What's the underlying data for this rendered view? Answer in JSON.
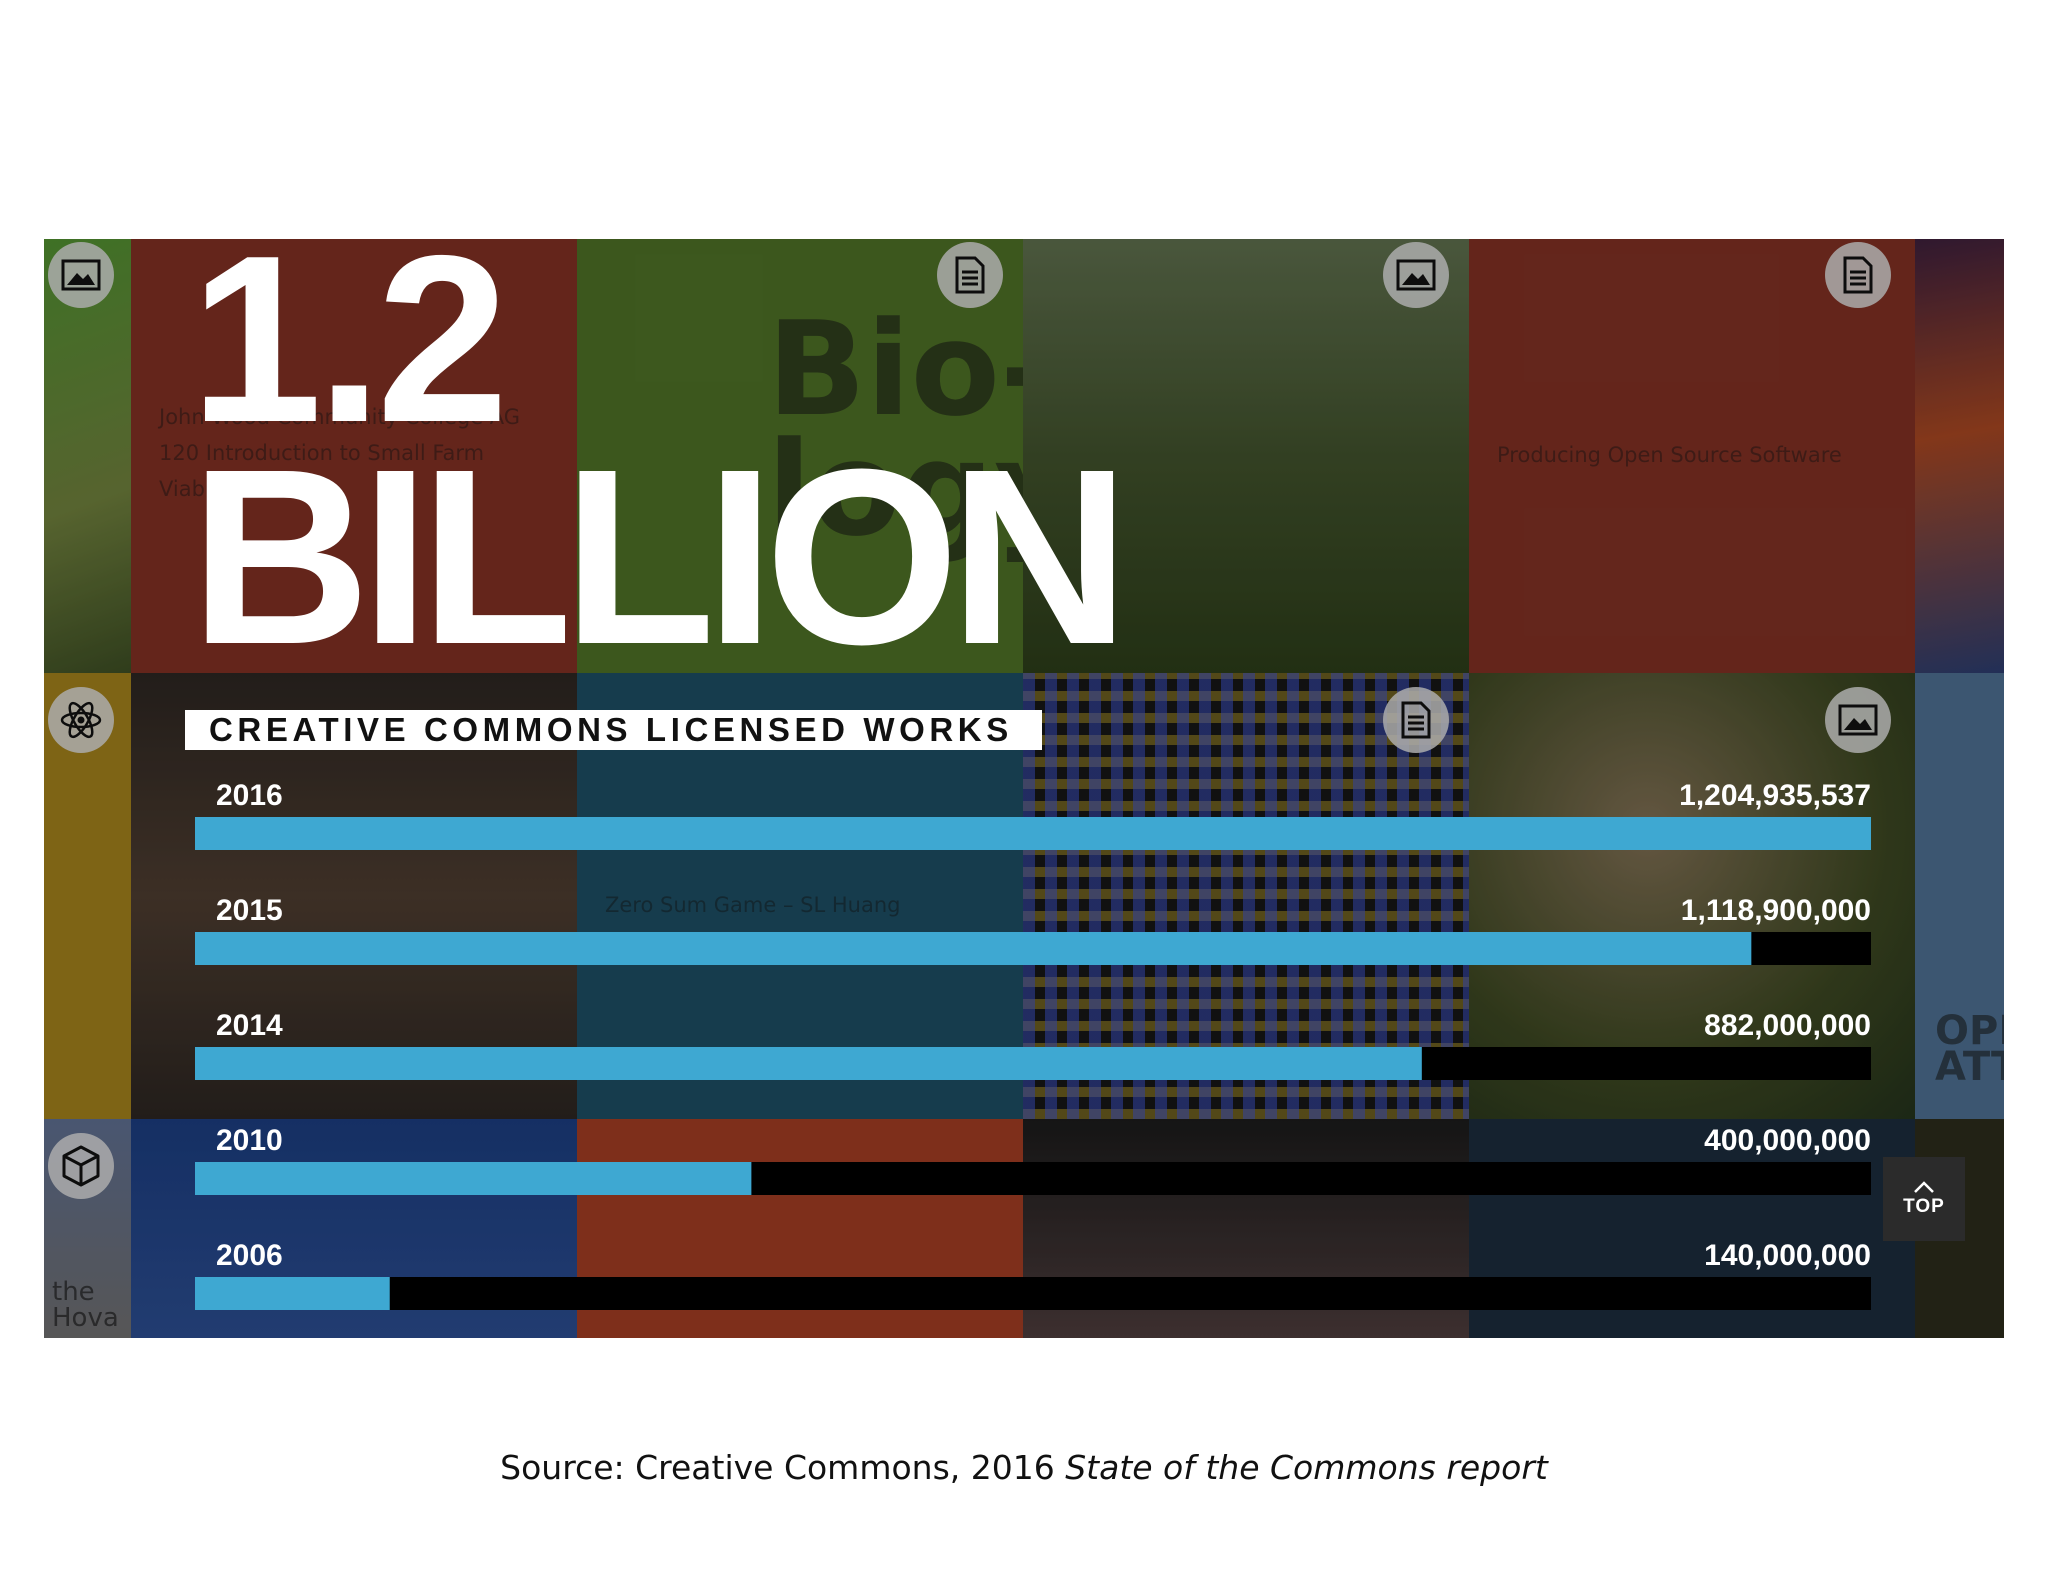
{
  "headline": {
    "number": "1.2",
    "word": "BILLION",
    "subtitle": "CREATIVE COMMONS LICENSED WORKS"
  },
  "background_tiles": {
    "farm_text": "John Wood Community College AG 120 Introduction to Small Farm Viability",
    "biology_text": "Bio- logy",
    "software_text": "Producing Open Source Software",
    "game_text": "Zero Sum Game – SL Huang",
    "hova_text": "the Hova",
    "attr_text": "OPEN ATTR"
  },
  "colors": {
    "bar": "#3ea8d2",
    "track": "#000000"
  },
  "chart_data": {
    "type": "bar",
    "orientation": "horizontal",
    "title": "CREATIVE COMMONS LICENSED WORKS",
    "categories": [
      "2016",
      "2015",
      "2014",
      "2010",
      "2006"
    ],
    "values": [
      1204935537,
      1118900000,
      882000000,
      400000000,
      140000000
    ],
    "value_labels": [
      "1,204,935,537",
      "1,118,900,000",
      "882,000,000",
      "400,000,000",
      "140,000,000"
    ],
    "xlim": [
      0,
      1204935537
    ],
    "grid": false
  },
  "top_button": {
    "label": "TOP"
  },
  "caption": {
    "prefix": "Source: Creative Commons, 2016 ",
    "italic": "State of the Commons report"
  }
}
